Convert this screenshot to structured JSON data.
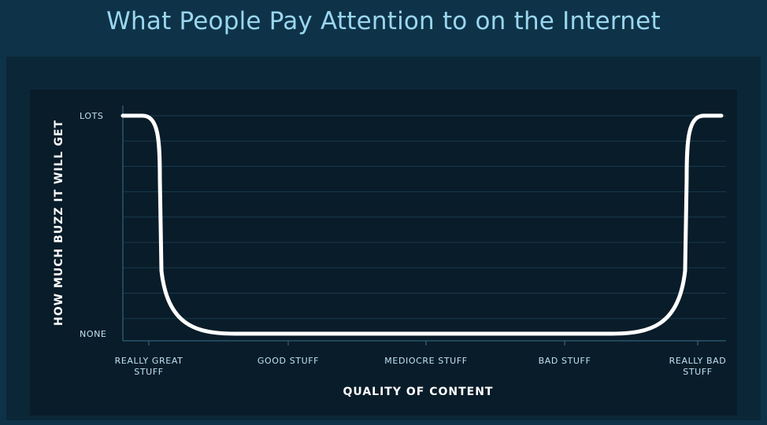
{
  "title": "What People Pay Attention to on the Internet",
  "colors": {
    "background": "#0e3348",
    "panel": "#0b2637",
    "plot": "#091c29",
    "title": "#9ad6ef",
    "curve": "#ffffff",
    "axis": "#3a6f8a",
    "grid": "#183a4e"
  },
  "chart_data": {
    "type": "line",
    "title": "What People Pay Attention to on the Internet",
    "xlabel": "QUALITY OF CONTENT",
    "ylabel": "HOW MUCH BUZZ IT WILL GET",
    "x_categories": [
      "REALLY GREAT\nSTUFF",
      "GOOD STUFF",
      "MEDIOCRE STUFF",
      "BAD STUFF",
      "REALLY BAD\nSTUFF"
    ],
    "y_categories": [
      "NONE",
      "LOTS"
    ],
    "xlim": [
      0,
      4
    ],
    "ylim": [
      0,
      1
    ],
    "grid": true,
    "series": [
      {
        "x": [
          0,
          0.1,
          0.25,
          0.5,
          0.9,
          3.1,
          3.5,
          3.75,
          3.9,
          4.0
        ],
        "y": [
          1,
          1,
          0.2,
          0.02,
          0,
          0,
          0.02,
          0.2,
          1,
          1
        ]
      }
    ]
  }
}
